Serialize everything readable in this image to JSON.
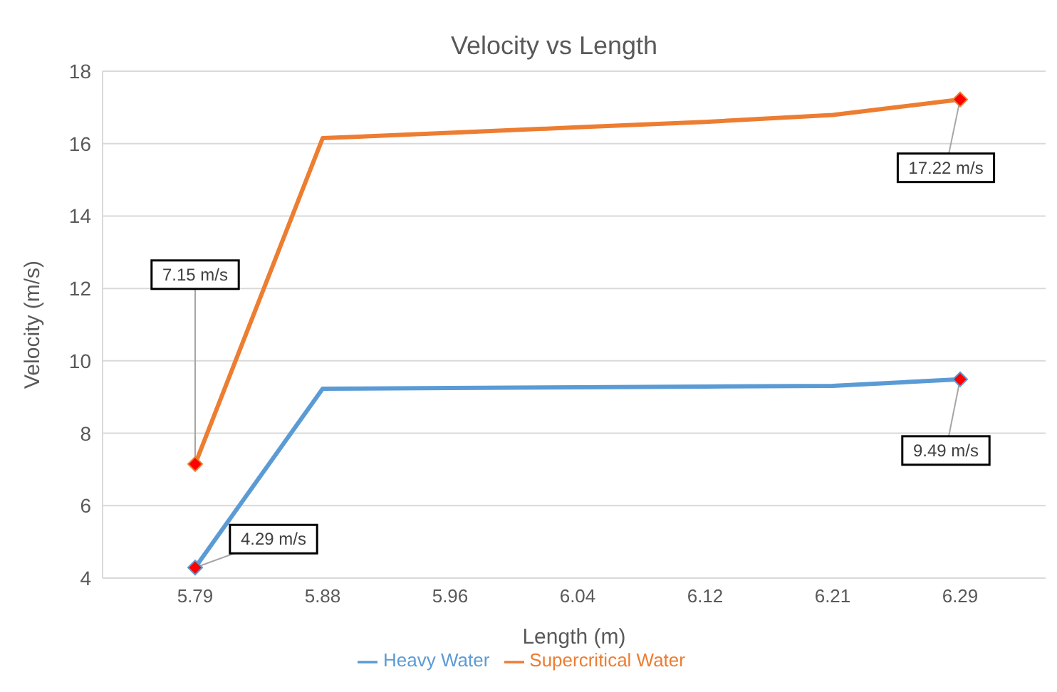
{
  "chart_data": {
    "type": "line",
    "title": "Velocity vs Length",
    "xlabel": "Length (m)",
    "ylabel": "Velocity (m/s)",
    "categories": [
      "5.79",
      "5.88",
      "5.96",
      "6.04",
      "6.12",
      "6.21",
      "6.29"
    ],
    "series": [
      {
        "name": "Heavy Water",
        "color": "#5b9bd5",
        "values": [
          4.29,
          9.23,
          9.25,
          9.27,
          9.29,
          9.31,
          9.49
        ],
        "value_labels": [
          "4.29 m/s",
          null,
          null,
          null,
          null,
          null,
          "9.49 m/s"
        ]
      },
      {
        "name": "Supercritical Water",
        "color": "#ed7d31",
        "values": [
          7.15,
          16.15,
          16.3,
          16.45,
          16.6,
          16.79,
          17.22
        ],
        "value_labels": [
          "7.15 m/s",
          null,
          null,
          null,
          null,
          null,
          "17.22 m/s"
        ]
      }
    ],
    "ylim": [
      4,
      18
    ],
    "yticks": [
      4,
      6,
      8,
      10,
      12,
      14,
      16,
      18
    ],
    "grid": "y",
    "legend": "bottom"
  }
}
